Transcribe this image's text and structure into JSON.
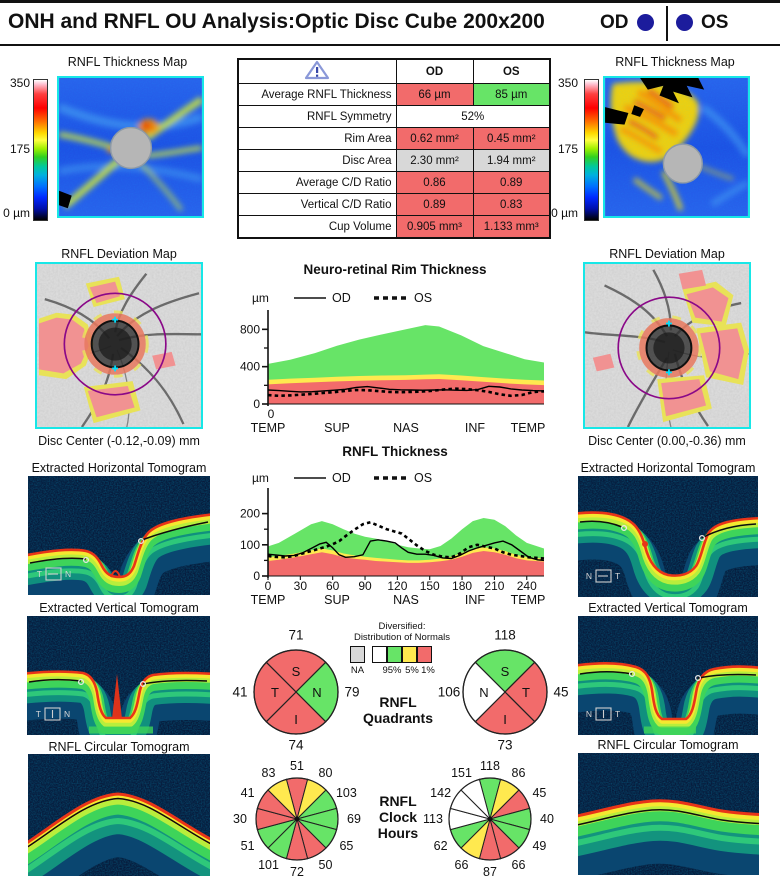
{
  "header": {
    "title": "ONH and RNFL OU Analysis:Optic Disc Cube 200x200",
    "od_label": "OD",
    "os_label": "OS"
  },
  "colors": {
    "abnormal_red": "#F26B6B",
    "borderline_yellow": "#FFE94F",
    "normal_green": "#67E467",
    "na_gray": "#D8D8D8",
    "indicator_blue": "#1C1C9C",
    "map_border_cyan": "#17E7E7"
  },
  "summary_table": {
    "columns": [
      "OD",
      "OS"
    ],
    "rows": [
      {
        "label": "Average RNFL Thickness",
        "od": "66 µm",
        "os": "85 µm",
        "od_status": "red",
        "os_status": "green"
      },
      {
        "label": "RNFL Symmetry",
        "merged": "52%"
      },
      {
        "label": "Rim Area",
        "od": "0.62 mm²",
        "os": "0.45 mm²",
        "od_status": "red",
        "os_status": "red"
      },
      {
        "label": "Disc Area",
        "od": "2.30 mm²",
        "os": "1.94 mm²",
        "od_status": "gray",
        "os_status": "gray"
      },
      {
        "label": "Average C/D Ratio",
        "od": "0.86",
        "os": "0.89",
        "od_status": "red",
        "os_status": "red"
      },
      {
        "label": "Vertical C/D Ratio",
        "od": "0.89",
        "os": "0.83",
        "od_status": "red",
        "os_status": "red"
      },
      {
        "label": "Cup Volume",
        "od": "0.905 mm³",
        "os": "1.133 mm³",
        "od_status": "red",
        "os_status": "red"
      }
    ]
  },
  "thickness_maps": {
    "title": "RNFL Thickness Map",
    "scale_labels": [
      "350",
      "175",
      "0 µm"
    ]
  },
  "deviation_maps": {
    "title": "RNFL Deviation Map",
    "od_caption": "Disc Center (-0.12,-0.09) mm",
    "os_caption": "Disc Center (0.00,-0.36) mm"
  },
  "tomograms": {
    "horizontal_title": "Extracted Horizontal Tomogram",
    "vertical_title": "Extracted Vertical Tomogram",
    "circular_title": "RNFL Circular Tomogram",
    "markers": {
      "od_h": [
        "T",
        "N"
      ],
      "os_h": [
        "N",
        "T"
      ],
      "od_v": [
        "T",
        "N"
      ],
      "os_v": [
        "N",
        "T"
      ]
    }
  },
  "normals_legend": {
    "title1": "Diversified:",
    "title2": "Distribution of Normals",
    "na_label": "NA",
    "pct_labels": [
      "95%",
      "5%",
      "1%"
    ],
    "swatch_status": [
      "gray",
      "white",
      "green",
      "yellow",
      "red"
    ]
  },
  "quadrants": {
    "heading": [
      "RNFL",
      "Quadrants"
    ],
    "od": {
      "sectors": [
        {
          "pos": "top",
          "letter": "S",
          "value": "71",
          "status": "red"
        },
        {
          "pos": "right",
          "letter": "N",
          "value": "79",
          "status": "green"
        },
        {
          "pos": "bottom",
          "letter": "I",
          "value": "74",
          "status": "red"
        },
        {
          "pos": "left",
          "letter": "T",
          "value": "41",
          "status": "red"
        }
      ]
    },
    "os": {
      "sectors": [
        {
          "pos": "top",
          "letter": "S",
          "value": "118",
          "status": "green"
        },
        {
          "pos": "right",
          "letter": "T",
          "value": "45",
          "status": "red"
        },
        {
          "pos": "bottom",
          "letter": "I",
          "value": "73",
          "status": "red"
        },
        {
          "pos": "left",
          "letter": "N",
          "value": "106",
          "status": "white"
        }
      ]
    }
  },
  "clock_hours": {
    "heading": [
      "RNFL",
      "Clock",
      "Hours"
    ],
    "od": {
      "values": [
        "51",
        "80",
        "103",
        "69",
        "65",
        "50",
        "72",
        "101",
        "51",
        "30",
        "41",
        "83"
      ],
      "status": [
        "red",
        "yellow",
        "green",
        "green",
        "green",
        "red",
        "red",
        "green",
        "green",
        "red",
        "red",
        "yellow"
      ]
    },
    "os": {
      "values": [
        "118",
        "86",
        "45",
        "40",
        "49",
        "66",
        "87",
        "66",
        "62",
        "113",
        "142",
        "151"
      ],
      "status": [
        "green",
        "yellow",
        "red",
        "green",
        "green",
        "red",
        "red",
        "yellow",
        "green",
        "white",
        "white",
        "white"
      ]
    }
  },
  "chart_data": [
    {
      "type": "area+line",
      "title": "Neuro-retinal Rim Thickness",
      "ylabel": "µm",
      "xlim": [
        0,
        1
      ],
      "ylim": [
        0,
        900
      ],
      "y_ticks": [
        {
          "v": 0,
          "label": "0"
        },
        {
          "v": 400,
          "label": "400"
        },
        {
          "v": 800,
          "label": "800"
        }
      ],
      "y_minor": [
        200,
        600
      ],
      "x_origin_label": "0",
      "x_regions": [
        {
          "v": 0,
          "label": "TEMP"
        },
        {
          "v": 0.25,
          "label": "SUP"
        },
        {
          "v": 0.5,
          "label": "NAS"
        },
        {
          "v": 0.75,
          "label": "INF"
        },
        {
          "v": 1,
          "label": "TEMP"
        }
      ],
      "bands": {
        "x": [
          0,
          0.08,
          0.17,
          0.25,
          0.33,
          0.42,
          0.5,
          0.57,
          0.62,
          0.7,
          0.78,
          0.86,
          0.93,
          1
        ],
        "green_top": [
          430,
          475,
          545,
          625,
          690,
          750,
          800,
          845,
          830,
          735,
          620,
          545,
          480,
          445
        ],
        "yellow_top": [
          260,
          272,
          282,
          292,
          300,
          305,
          308,
          315,
          318,
          305,
          288,
          272,
          260,
          252
        ],
        "red_top": [
          210,
          222,
          232,
          242,
          250,
          255,
          258,
          265,
          268,
          255,
          238,
          222,
          210,
          202
        ]
      },
      "series": [
        {
          "name": "OD",
          "style": "solid",
          "x": [
            0,
            0.04,
            0.08,
            0.12,
            0.16,
            0.2,
            0.24,
            0.28,
            0.32,
            0.36,
            0.4,
            0.44,
            0.48,
            0.52,
            0.56,
            0.6,
            0.64,
            0.68,
            0.72,
            0.76,
            0.8,
            0.84,
            0.88,
            0.92,
            0.96,
            1
          ],
          "y": [
            150,
            144,
            136,
            130,
            132,
            140,
            148,
            158,
            178,
            186,
            172,
            158,
            152,
            150,
            148,
            150,
            152,
            148,
            146,
            154,
            190,
            182,
            162,
            150,
            144,
            140
          ]
        },
        {
          "name": "OS",
          "style": "dashed",
          "x": [
            0,
            0.04,
            0.08,
            0.12,
            0.16,
            0.2,
            0.24,
            0.28,
            0.32,
            0.36,
            0.4,
            0.44,
            0.48,
            0.52,
            0.56,
            0.6,
            0.64,
            0.68,
            0.72,
            0.76,
            0.8,
            0.84,
            0.88,
            0.92,
            0.96,
            1
          ],
          "y": [
            95,
            88,
            92,
            100,
            108,
            118,
            128,
            140,
            150,
            148,
            138,
            130,
            126,
            130,
            134,
            142,
            156,
            164,
            160,
            148,
            130,
            104,
            88,
            96,
            128,
            136
          ]
        }
      ]
    },
    {
      "type": "area+line",
      "title": "RNFL Thickness",
      "ylabel": "µm",
      "xlim": [
        0,
        256
      ],
      "ylim": [
        0,
        250
      ],
      "y_ticks": [
        {
          "v": 0,
          "label": "0"
        },
        {
          "v": 100,
          "label": "100"
        },
        {
          "v": 200,
          "label": "200"
        }
      ],
      "y_minor": [
        50,
        150
      ],
      "x_ticks": [
        0,
        30,
        60,
        90,
        120,
        150,
        180,
        210,
        240
      ],
      "x_regions": [
        {
          "v": 0,
          "label": "TEMP"
        },
        {
          "v": 64,
          "label": "SUP"
        },
        {
          "v": 128,
          "label": "NAS"
        },
        {
          "v": 192,
          "label": "INF"
        },
        {
          "v": 256,
          "label": "TEMP"
        }
      ],
      "bands": {
        "x": [
          0,
          10,
          25,
          40,
          50,
          60,
          70,
          80,
          90,
          100,
          110,
          120,
          130,
          140,
          150,
          160,
          170,
          180,
          190,
          200,
          210,
          220,
          230,
          240,
          256
        ],
        "green_top": [
          95,
          106,
          136,
          166,
          176,
          166,
          150,
          136,
          126,
          120,
          112,
          100,
          92,
          88,
          86,
          96,
          120,
          150,
          176,
          186,
          180,
          160,
          130,
          106,
          88
        ],
        "yellow_top": [
          60,
          64,
          72,
          82,
          88,
          82,
          72,
          66,
          62,
          58,
          55,
          52,
          50,
          50,
          52,
          56,
          62,
          74,
          86,
          92,
          88,
          80,
          68,
          60,
          56
        ],
        "red_top": [
          48,
          52,
          60,
          70,
          76,
          70,
          60,
          55,
          52,
          48,
          46,
          44,
          42,
          42,
          44,
          47,
          52,
          62,
          74,
          80,
          76,
          68,
          57,
          50,
          46
        ]
      },
      "series": [
        {
          "name": "OD",
          "style": "solid",
          "x": [
            0,
            8,
            16,
            24,
            32,
            40,
            48,
            54,
            60,
            66,
            72,
            80,
            88,
            95,
            102,
            110,
            118,
            124,
            130,
            138,
            146,
            154,
            162,
            170,
            178,
            186,
            194,
            202,
            210,
            218,
            226,
            234,
            242,
            250,
            256
          ],
          "y": [
            70,
            67,
            64,
            66,
            74,
            88,
            103,
            108,
            90,
            68,
            60,
            62,
            68,
            112,
            116,
            112,
            106,
            90,
            76,
            70,
            70,
            66,
            58,
            56,
            66,
            80,
            90,
            98,
            106,
            112,
            100,
            80,
            60,
            52,
            50
          ]
        },
        {
          "name": "OS",
          "style": "dashed",
          "x": [
            0,
            8,
            16,
            24,
            32,
            40,
            48,
            54,
            60,
            66,
            72,
            80,
            88,
            95,
            102,
            110,
            118,
            124,
            130,
            138,
            146,
            154,
            162,
            170,
            178,
            186,
            194,
            202,
            210,
            218,
            226,
            234,
            242,
            250,
            256
          ],
          "y": [
            64,
            61,
            60,
            64,
            72,
            80,
            88,
            94,
            102,
            112,
            128,
            148,
            166,
            172,
            162,
            150,
            142,
            136,
            120,
            98,
            80,
            68,
            62,
            60,
            72,
            92,
            100,
            94,
            88,
            76,
            68,
            64,
            60,
            58,
            56
          ]
        }
      ]
    }
  ]
}
